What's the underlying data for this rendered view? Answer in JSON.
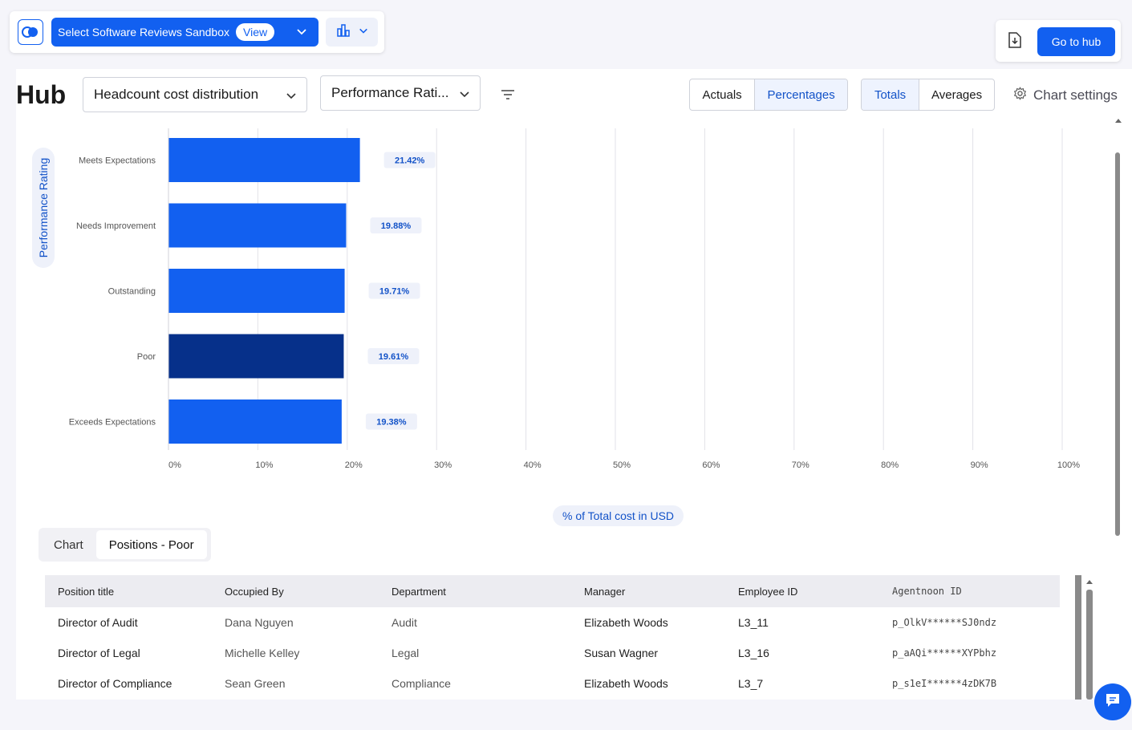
{
  "topbar": {
    "sandbox_label": "Select Software Reviews Sandbox",
    "view_label": "View",
    "go_to_hub": "Go to hub"
  },
  "header": {
    "title": "Hub",
    "dropdown1": "Headcount cost distribution",
    "dropdown2": "Performance Rati...",
    "seg1": [
      "Actuals",
      "Percentages"
    ],
    "seg2": [
      "Totals",
      "Averages"
    ],
    "chart_settings": "Chart settings"
  },
  "chart_data": {
    "type": "bar",
    "orientation": "horizontal",
    "categories": [
      "Meets Expectations",
      "Needs Improvement",
      "Outstanding",
      "Poor",
      "Exceeds Expectations"
    ],
    "values": [
      21.42,
      19.88,
      19.71,
      19.61,
      19.38
    ],
    "value_labels": [
      "21.42%",
      "19.88%",
      "19.71%",
      "19.61%",
      "19.38%"
    ],
    "highlighted_index": 3,
    "xlim": [
      0,
      100
    ],
    "xticks": [
      "0%",
      "10%",
      "20%",
      "30%",
      "40%",
      "50%",
      "60%",
      "70%",
      "80%",
      "90%",
      "100%"
    ],
    "xlabel": "% of Total cost in USD",
    "ylabel": "Performance Rating",
    "colors": {
      "bar": "#1260f0",
      "highlight": "#06308a",
      "label_bg": "#eef1fa",
      "label_text": "#1252c8"
    }
  },
  "tabs": [
    "Chart",
    "Positions - Poor"
  ],
  "table": {
    "headers": [
      "Position title",
      "Occupied By",
      "Department",
      "Manager",
      "Employee ID",
      "Agentnoon ID"
    ],
    "rows": [
      [
        "Director of Audit",
        "Dana Nguyen",
        "Audit",
        "Elizabeth Woods",
        "L3_11",
        "p_OlkV******SJ0ndz"
      ],
      [
        "Director of Legal",
        "Michelle Kelley",
        "Legal",
        "Susan Wagner",
        "L3_16",
        "p_aAQi******XYPbhz"
      ],
      [
        "Director of Compliance",
        "Sean Green",
        "Compliance",
        "Elizabeth Woods",
        "L3_7",
        "p_s1eI******4zDK7B"
      ]
    ]
  }
}
